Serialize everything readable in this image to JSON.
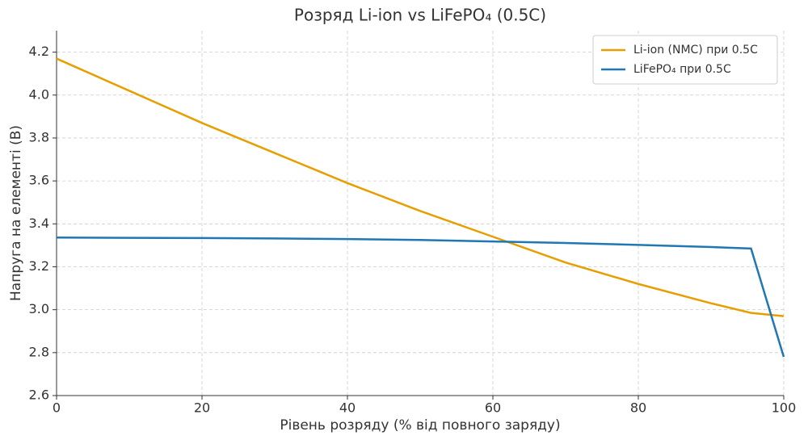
{
  "chart_data": {
    "type": "line",
    "title": "Розряд Li-ion vs LiFePO₄ (0.5C)",
    "x_label": "Рівень розряду (% від повного заряду)",
    "y_label": "Напруга на елементі (В)",
    "x": [
      0,
      10,
      20,
      30,
      40,
      50,
      60,
      70,
      80,
      90,
      95.5,
      100
    ],
    "series": [
      {
        "name": "Li-ion (NMC) при 0.5C",
        "color": "#e69f00",
        "values": [
          4.17,
          4.02,
          3.87,
          3.73,
          3.59,
          3.46,
          3.34,
          3.22,
          3.12,
          3.03,
          2.985,
          2.97
        ]
      },
      {
        "name": "LiFePO₄ при 0.5C",
        "color": "#1f77b4",
        "values": [
          3.336,
          3.335,
          3.334,
          3.332,
          3.329,
          3.325,
          3.318,
          3.311,
          3.302,
          3.292,
          3.285,
          2.78
        ]
      }
    ],
    "xlim": [
      0,
      100
    ],
    "xticks": [
      0,
      20,
      40,
      60,
      80,
      100
    ],
    "ylim": [
      2.6,
      4.3
    ],
    "yticks": [
      2.6,
      2.8,
      {
        "value": 3,
        "label": "3.0"
      },
      3.2,
      3.4,
      3.6,
      3.8,
      {
        "value": 4,
        "label": "4.0"
      },
      4.2
    ],
    "grid": true,
    "legend": "upper-right"
  }
}
